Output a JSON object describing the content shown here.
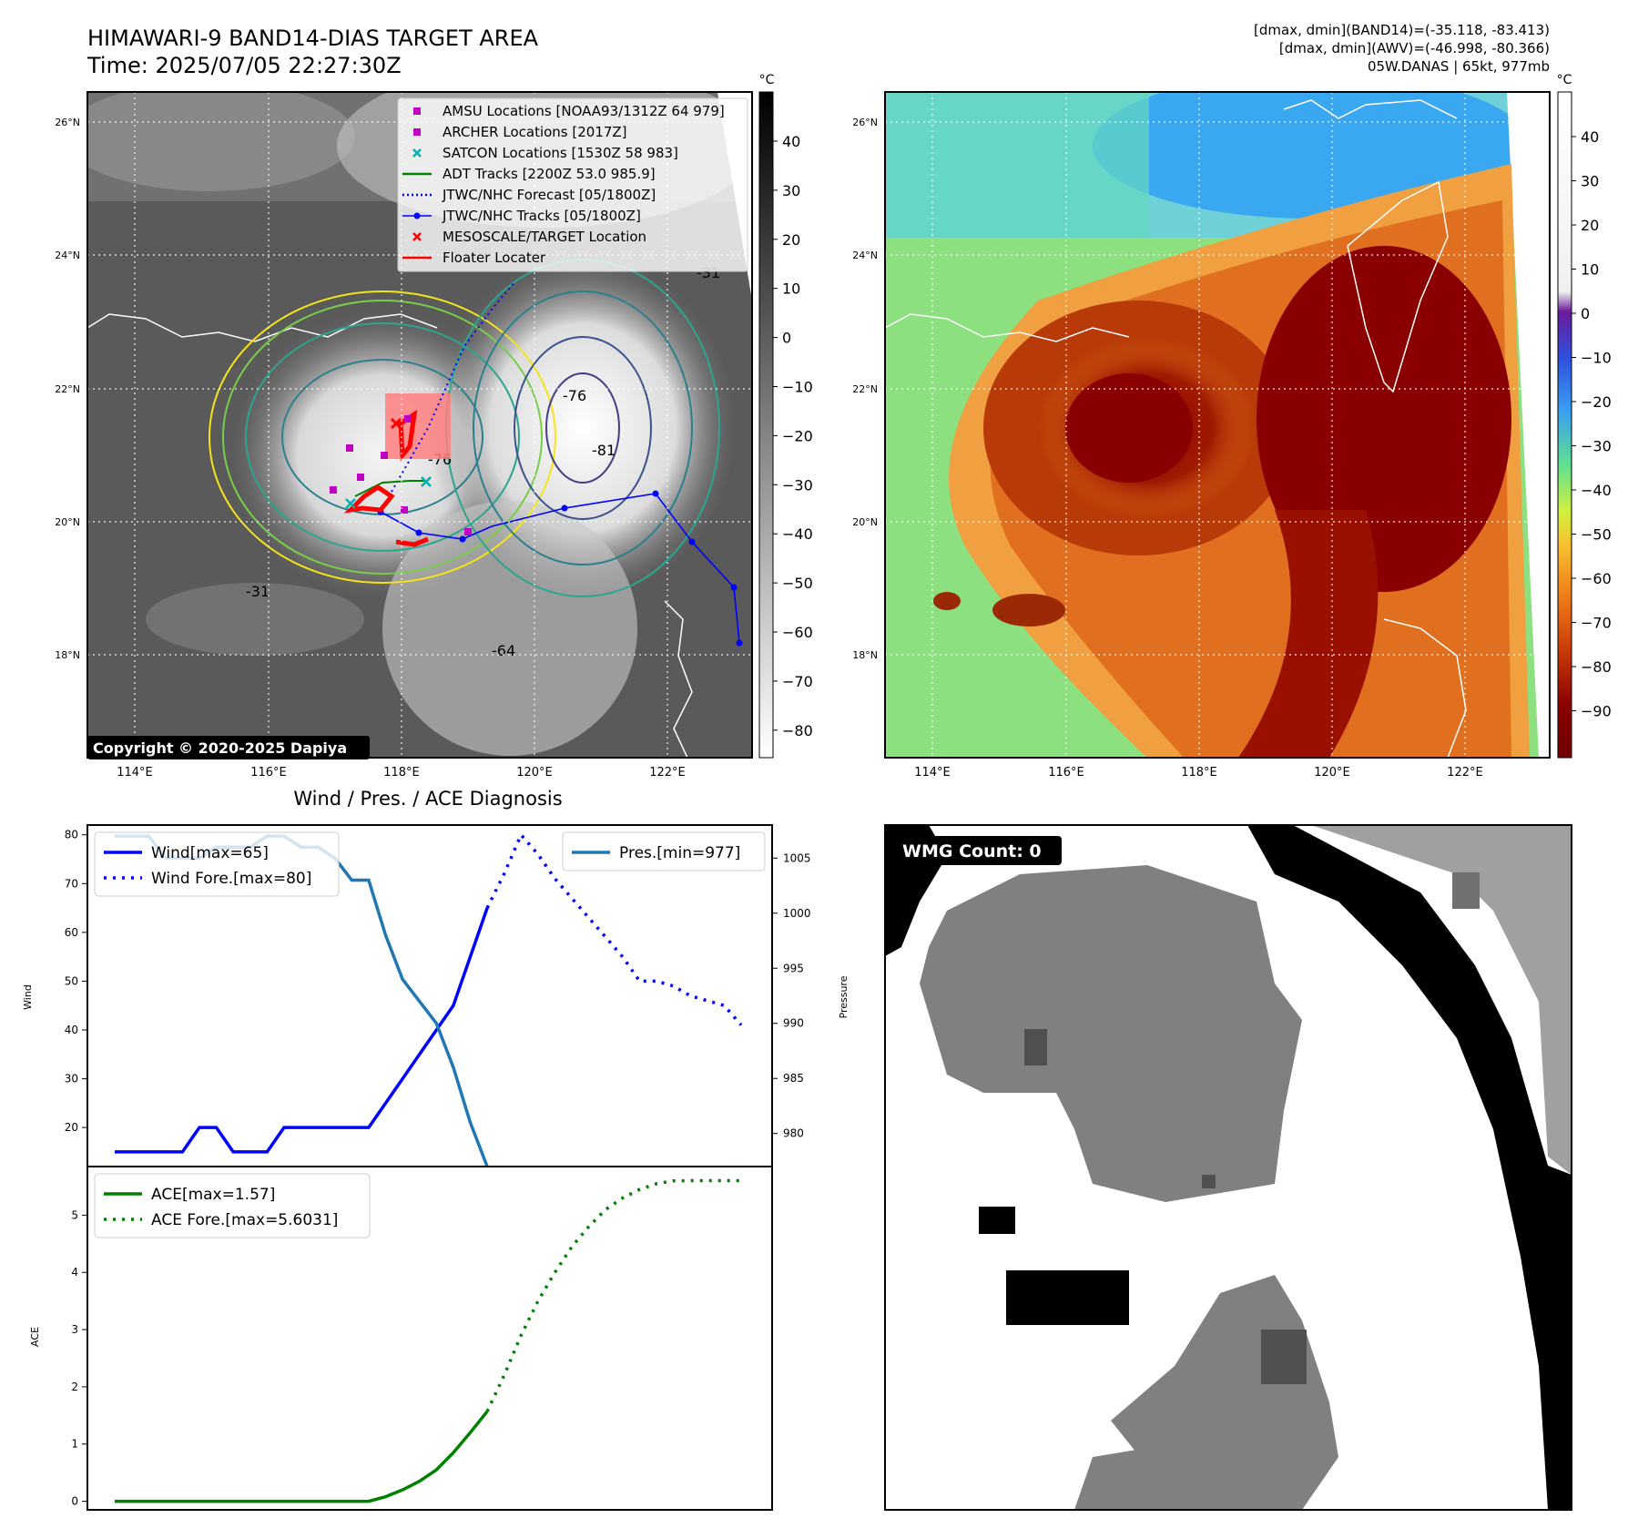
{
  "header": {
    "title_line1": "HIMAWARI-9 BAND14-DIAS TARGET AREA",
    "title_line2": "Time: 2025/07/05 22:27:30Z",
    "info_line1": "[dmax, dmin](BAND14)=(-35.118, -83.413)",
    "info_line2": "[dmax, dmin](AWV)=(-46.998, -80.366)",
    "info_line3": "05W.DANAS | 65kt, 977mb"
  },
  "map_common": {
    "lat_labels": [
      "26°N",
      "24°N",
      "22°N",
      "20°N",
      "18°N"
    ],
    "lon_labels": [
      "114°E",
      "116°E",
      "118°E",
      "120°E",
      "122°E"
    ],
    "colorbar_unit": "°C"
  },
  "ir_panel": {
    "colorbar_ticks": [
      "40",
      "30",
      "20",
      "10",
      "0",
      "−10",
      "−20",
      "−30",
      "−40",
      "−50",
      "−60",
      "−70",
      "−80"
    ],
    "copyright": "Copyright © 2020-2025 Dapiya",
    "contour_labels": [
      "-76",
      "-81",
      "-76",
      "-64",
      "-31",
      "-31"
    ],
    "legend": [
      {
        "label": "AMSU Locations [NOAA93/1312Z 64 979]",
        "color": "#c000c0",
        "marker": "square"
      },
      {
        "label": "ARCHER Locations [2017Z]",
        "color": "#c000c0",
        "marker": "square"
      },
      {
        "label": "SATCON Locations [1530Z 58 983]",
        "color": "#00b0b0",
        "marker": "x"
      },
      {
        "label": "ADT Tracks [2200Z 53.0 985.9]",
        "color": "#008000",
        "marker": "line"
      },
      {
        "label": "JTWC/NHC Forecast [05/1800Z]",
        "color": "#0000ff",
        "marker": "dotted"
      },
      {
        "label": "JTWC/NHC Tracks [05/1800Z]",
        "color": "#0000ff",
        "marker": "line-dot"
      },
      {
        "label": "MESOSCALE/TARGET Location",
        "color": "#ff0000",
        "marker": "x"
      },
      {
        "label": "Floater Locater",
        "color": "#ff0000",
        "marker": "line"
      }
    ]
  },
  "awv_panel": {
    "colorbar_ticks": [
      "40",
      "30",
      "20",
      "10",
      "0",
      "−10",
      "−20",
      "−30",
      "−40",
      "−50",
      "−60",
      "−70",
      "−80",
      "−90"
    ]
  },
  "wmg_panel": {
    "badge": "WMG Count: 0"
  },
  "chart_data": [
    {
      "type": "line",
      "title": "Wind / Pres. / ACE Diagnosis",
      "ylabel": "Wind",
      "ylabel_right": "Pressure",
      "ylim": [
        12,
        82
      ],
      "ylim_right": [
        977,
        1008
      ],
      "y_ticks": [
        20,
        30,
        40,
        50,
        60,
        70,
        80
      ],
      "y_ticks_right": [
        980,
        985,
        990,
        995,
        1000,
        1005
      ],
      "grid": false,
      "legend_left_position": "upper-left",
      "legend_right_position": "upper-right",
      "series": [
        {
          "name": "Wind[max=65]",
          "color": "#0000ff",
          "style": "solid",
          "x": [
            0,
            4,
            5,
            6,
            7,
            8,
            9,
            10,
            11,
            12,
            13,
            14,
            15,
            16,
            17,
            18,
            19,
            20,
            21,
            22
          ],
          "values": [
            15,
            15,
            20,
            20,
            15,
            15,
            15,
            20,
            20,
            20,
            20,
            20,
            20,
            25,
            30,
            35,
            40,
            45,
            55,
            65
          ]
        },
        {
          "name": "Wind Fore.[max=80]",
          "color": "#0000ff",
          "style": "dotted",
          "x": [
            22,
            23,
            24,
            25,
            26,
            27,
            28,
            29,
            30,
            31,
            32,
            33,
            34,
            35,
            36,
            37
          ],
          "values": [
            65,
            72,
            80,
            76,
            71,
            67,
            63,
            59,
            55,
            50,
            50,
            49,
            47,
            46,
            45,
            41
          ],
          "values_note": "plotted against left axis as in original"
        },
        {
          "name": "Pres.[min=977]",
          "color": "#1f77b4",
          "style": "solid",
          "axis": "right",
          "x": [
            0,
            2,
            3,
            4,
            5,
            6,
            7,
            8,
            9,
            10,
            11,
            12,
            13,
            14,
            15,
            16,
            17,
            18,
            19,
            20,
            21,
            22
          ],
          "values": [
            1007,
            1007,
            1005,
            1005,
            1005,
            1006,
            1006,
            1006,
            1007,
            1007,
            1006,
            1006,
            1005,
            1003,
            1003,
            998,
            994,
            992,
            990,
            986,
            981,
            977
          ]
        }
      ]
    },
    {
      "type": "line",
      "ylabel": "ACE",
      "ylim": [
        -0.15,
        5.85
      ],
      "y_ticks": [
        0,
        1,
        2,
        3,
        4,
        5
      ],
      "grid": false,
      "legend_position": "upper-left",
      "series": [
        {
          "name": "ACE[max=1.57]",
          "color": "#008000",
          "style": "solid",
          "x": [
            0,
            15,
            16,
            17,
            18,
            19,
            20,
            21,
            22
          ],
          "values": [
            0,
            0,
            0.08,
            0.2,
            0.35,
            0.55,
            0.85,
            1.2,
            1.57
          ]
        },
        {
          "name": "ACE Fore.[max=5.6031]",
          "color": "#008000",
          "style": "dotted",
          "x": [
            22,
            23,
            24,
            25,
            26,
            27,
            28,
            29,
            30,
            31,
            32,
            33,
            34,
            35,
            36,
            37
          ],
          "values": [
            1.57,
            2.2,
            2.9,
            3.5,
            4.0,
            4.45,
            4.8,
            5.1,
            5.3,
            5.45,
            5.55,
            5.6,
            5.6031,
            5.6031,
            5.6031,
            5.6031
          ]
        }
      ]
    }
  ]
}
